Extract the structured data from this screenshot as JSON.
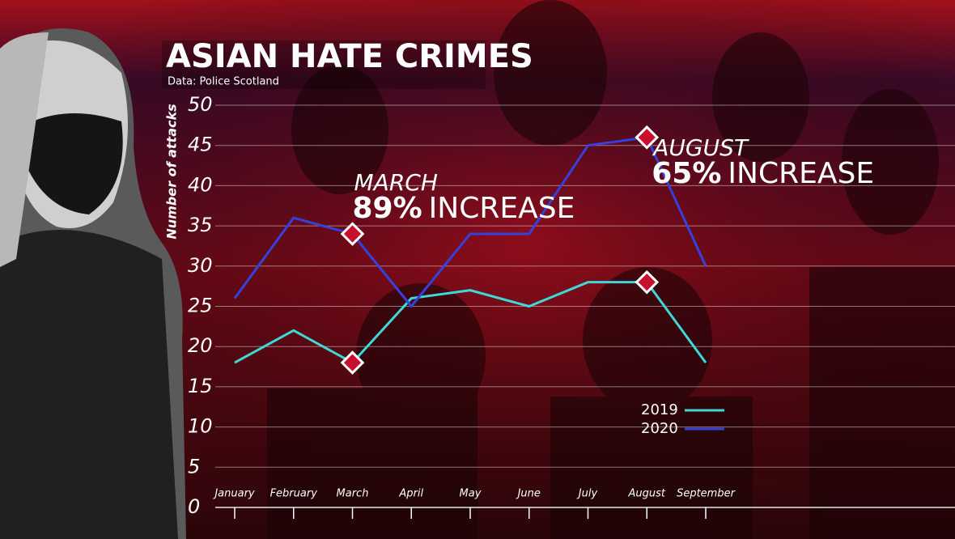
{
  "chart_data": {
    "type": "line",
    "title": "ASIAN HATE CRIMES",
    "subtitle": "Data: Police Scotland",
    "y_label": "Number of attacks",
    "categories": [
      "January",
      "February",
      "March",
      "April",
      "May",
      "June",
      "July",
      "August",
      "September"
    ],
    "series": [
      {
        "name": "2019",
        "color": "#3fd8d8",
        "values": [
          18,
          22,
          18,
          26,
          27,
          25,
          28,
          28,
          18
        ]
      },
      {
        "name": "2020",
        "color": "#3441dc",
        "values": [
          26,
          36,
          34,
          25,
          34,
          34,
          45,
          46,
          30
        ]
      }
    ],
    "ylim": [
      0,
      50
    ],
    "yticks": [
      0,
      5,
      10,
      15,
      20,
      25,
      30,
      35,
      40,
      45,
      50
    ],
    "grid": true,
    "annotations": [
      {
        "month": "MARCH",
        "change": "89%",
        "text": "INCREASE"
      },
      {
        "month": "AUGUST",
        "change": "65%",
        "text": "INCREASE"
      }
    ]
  }
}
